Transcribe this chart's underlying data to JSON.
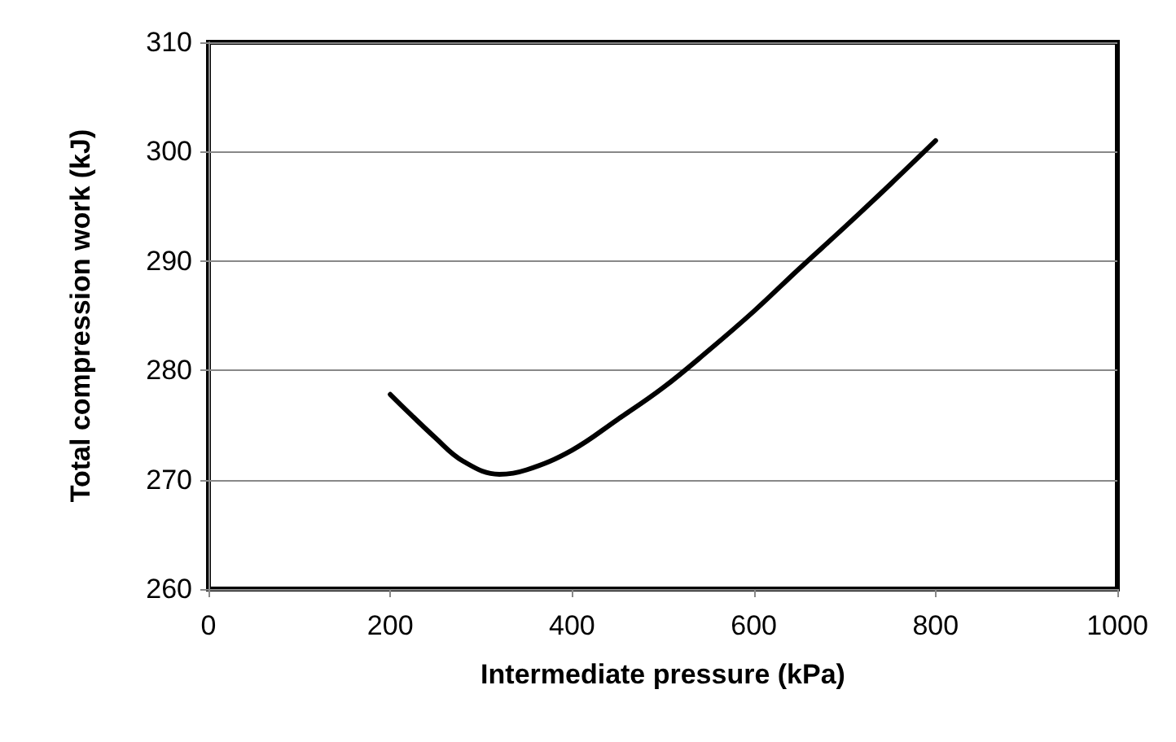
{
  "chart_data": {
    "type": "line",
    "xlabel": "Intermediate pressure (kPa)",
    "ylabel": "Total compression work (kJ)",
    "x": [
      200,
      250,
      280,
      320,
      350,
      400,
      450,
      500,
      550,
      600,
      650,
      700,
      750,
      800
    ],
    "series": [
      {
        "color": "#000000",
        "values": [
          277.8,
          273.8,
          271.7,
          270.5,
          270.9,
          272.7,
          275.5,
          278.4,
          281.8,
          285.4,
          289.3,
          293.1,
          297.0,
          301.0
        ]
      }
    ],
    "xlim": [
      0,
      1000
    ],
    "xticks": [
      0,
      200,
      400,
      600,
      800,
      1000
    ],
    "ylim": [
      260,
      310
    ],
    "yticks": [
      260,
      270,
      280,
      290,
      300,
      310
    ],
    "grid": "y",
    "marker": "none",
    "line_style": "solid"
  }
}
